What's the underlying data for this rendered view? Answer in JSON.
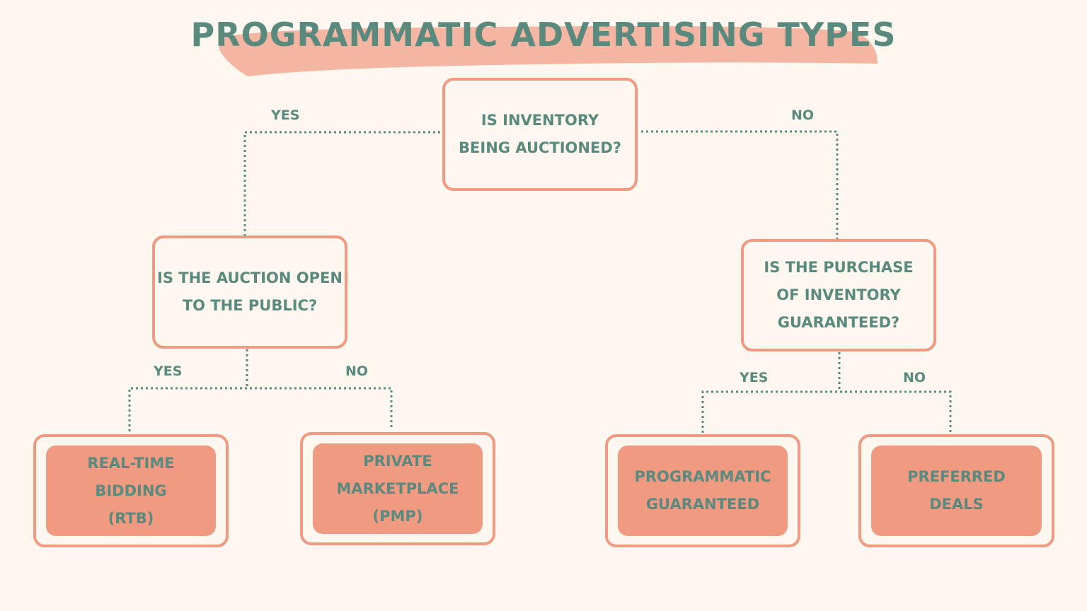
{
  "title": "Programmatic Advertising Types",
  "colors": {
    "background": "#fdf7ef",
    "accent": "#f09a82",
    "text": "#5a8a7e",
    "brush": "#f4b6a2"
  },
  "nodes": {
    "root": "Is inventory\nbeing auctioned?",
    "left_question": "Is the auction open\nto the public?",
    "right_question": "Is the purchase\nof inventory\nguaranteed?",
    "rtb": "Real-time\nbidding\n(RTB)",
    "pmp": "Private\nmarketplace\n(PMP)",
    "pg": "Programmatic\nguaranteed",
    "pd": "Preferred\ndeals"
  },
  "edges": {
    "root_yes": "Yes",
    "root_no": "No",
    "left_yes": "Yes",
    "left_no": "No",
    "right_yes": "Yes",
    "right_no": "No"
  }
}
